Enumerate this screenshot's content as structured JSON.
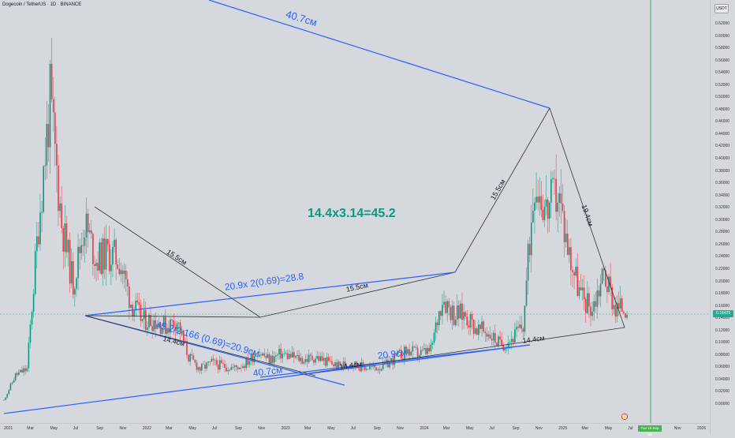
{
  "chart_header": {
    "title": "Dogecoin / TetherUS · 1D · BINANCE"
  },
  "currency_button": "USDT",
  "price_axis": [
    "0.62000",
    "0.60000",
    "0.58000",
    "0.56000",
    "0.54000",
    "0.52000",
    "0.50000",
    "0.48000",
    "0.46000",
    "0.44000",
    "0.42000",
    "0.40000",
    "0.38000",
    "0.36000",
    "0.34000",
    "0.32000",
    "0.30000",
    "0.28000",
    "0.26000",
    "0.24000",
    "0.22000",
    "0.20000",
    "0.18000",
    "0.16000",
    "0.14000",
    "0.12000",
    "0.10000",
    "0.08000",
    "0.06000",
    "0.04000",
    "0.02000",
    "0.00000"
  ],
  "current_price": "0.16429",
  "time_axis": [
    "2021",
    "Mar",
    "May",
    "Jul",
    "Sep",
    "Nov",
    "2022",
    "Mar",
    "May",
    "Jul",
    "Sep",
    "Nov",
    "2023",
    "Mar",
    "May",
    "Jul",
    "Sep",
    "Nov",
    "2024",
    "Mar",
    "May",
    "Jul",
    "Sep",
    "Nov",
    "2025",
    "Mar",
    "May",
    "Jul",
    "Sep",
    "Nov",
    "2026"
  ],
  "cursor_date": "Tue 16 Sep '25",
  "annotations": {
    "top_line": "40.7см",
    "center_formula": "14.4x3.14=45.2",
    "blue_formula_1": "20.9x 2(0.69)=28.8",
    "blue_formula_2": "45.2/2.166 (0.69)=20.9см",
    "left_diag": "15.5см",
    "left_lower": "14.4см",
    "mid_black": "15.5см",
    "right_up": "15.5см",
    "right_down": "19.4см",
    "bottom_blue": "40.7см",
    "bottom_black": "14.4см",
    "mid_blue": "20.9см",
    "right_black": "14.4см"
  },
  "colors": {
    "up": "#089981",
    "down": "#f23645",
    "line_blue": "#2962ff",
    "line_black": "#333333",
    "cursor": "#4caf50"
  },
  "chart_data": {
    "type": "line",
    "title": "Dogecoin / TetherUS · 1D · BINANCE",
    "xlabel": "",
    "ylabel": "",
    "ylim": [
      0.0,
      0.63
    ],
    "x": [
      "2021-01",
      "2021-02",
      "2021-03",
      "2021-04",
      "2021-05",
      "2021-06",
      "2021-07",
      "2021-08",
      "2021-09",
      "2021-10",
      "2021-11",
      "2021-12",
      "2022-01",
      "2022-02",
      "2022-03",
      "2022-04",
      "2022-05",
      "2022-06",
      "2022-07",
      "2022-08",
      "2022-09",
      "2022-10",
      "2022-11",
      "2022-12",
      "2023-01",
      "2023-02",
      "2023-03",
      "2023-04",
      "2023-05",
      "2023-06",
      "2023-07",
      "2023-08",
      "2023-09",
      "2023-10",
      "2023-11",
      "2023-12",
      "2024-01",
      "2024-02",
      "2024-03",
      "2024-04",
      "2024-05",
      "2024-06",
      "2024-07",
      "2024-08",
      "2024-09",
      "2024-10",
      "2024-11",
      "2024-12",
      "2025-01",
      "2025-02",
      "2025-03",
      "2025-04",
      "2025-05",
      "2025-06",
      "2025-07"
    ],
    "series": [
      {
        "values": [
          0.009,
          0.05,
          0.06,
          0.3,
          0.5,
          0.3,
          0.2,
          0.3,
          0.24,
          0.25,
          0.24,
          0.17,
          0.14,
          0.14,
          0.13,
          0.14,
          0.08,
          0.06,
          0.07,
          0.065,
          0.062,
          0.07,
          0.09,
          0.075,
          0.085,
          0.08,
          0.075,
          0.08,
          0.072,
          0.065,
          0.07,
          0.064,
          0.062,
          0.065,
          0.08,
          0.09,
          0.085,
          0.09,
          0.18,
          0.15,
          0.15,
          0.125,
          0.12,
          0.1,
          0.11,
          0.13,
          0.38,
          0.32,
          0.35,
          0.25,
          0.18,
          0.16,
          0.22,
          0.16,
          0.164
        ]
      }
    ]
  }
}
